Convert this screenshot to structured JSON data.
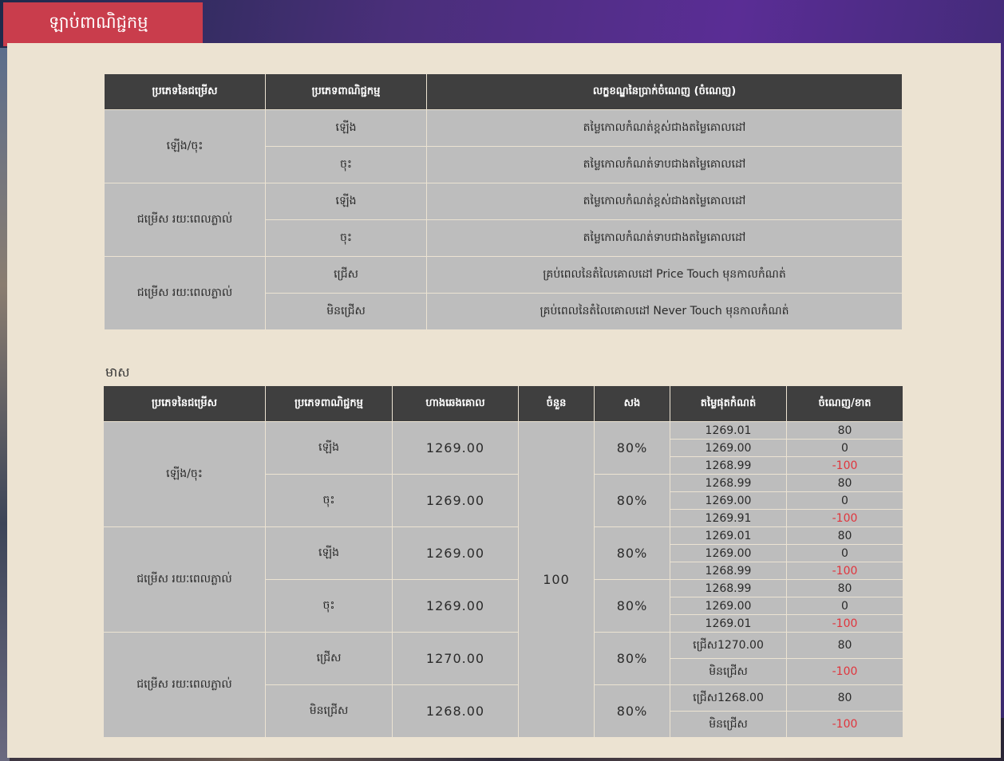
{
  "tab": {
    "title": "ឡាប់ពាណិជ្ជកម្ម"
  },
  "table1": {
    "headers": [
      "ប្រភេទនៃជម្រើស",
      "ប្រភេទពាណិជ្ជកម្ម",
      "លក្ខខណ្ឌនៃប្រាក់ចំណេញ (ចំណេញ)"
    ],
    "rows": [
      {
        "option": "ឡើង/ចុះ",
        "trade": "ឡើង",
        "condition": "តម្លៃកោលកំណត់ខ្ពស់ជាងតម្លៃគោលដៅ"
      },
      {
        "trade": "ចុះ",
        "condition": "តម្លៃកោលកំណត់ទាបជាងតម្លៃគោលដៅ"
      },
      {
        "option": "ជម្រើស រយៈពេលភ្លាល់",
        "trade": "ឡើង",
        "condition": "តម្លៃកោលកំណត់ខ្ពស់ជាងតម្លៃគោលដៅ"
      },
      {
        "trade": "ចុះ",
        "condition": "តម្លៃកោលកំណត់ទាបជាងតម្លៃគោលដៅ"
      },
      {
        "option": "ជម្រើស រយៈពេលភ្លាល់",
        "trade": "ជ្រើស",
        "condition": "គ្រប់ពេលនៃតំលៃគោលដៅ Price Touch មុនកាលកំណត់"
      },
      {
        "trade": "មិនជ្រើស",
        "condition": "គ្រប់ពេលនៃតំលៃគោលដៅ Never Touch មុនកាលកំណត់"
      }
    ]
  },
  "section_label": "មាស",
  "table2": {
    "headers": [
      "ប្រភេទនៃជម្រើស",
      "ប្រភេទពាណិជ្ជកម្ម",
      "ហាងឆេងគោល",
      "ចំនួន",
      "សង",
      "តម្លៃផុតកំណត់",
      "ចំណេញ/ខាត"
    ],
    "amount": "100",
    "groups": [
      {
        "option": "ឡើង/ចុះ",
        "trade": "ឡើង",
        "base": "1269.00",
        "payout": "80%",
        "expiry": [
          "1269.01",
          "1269.00",
          "1268.99"
        ],
        "pl": [
          "80",
          "0",
          "-100"
        ]
      },
      {
        "trade": "ចុះ",
        "base": "1269.00",
        "payout": "80%",
        "expiry": [
          "1268.99",
          "1269.00",
          "1269.91"
        ],
        "pl": [
          "80",
          "0",
          "-100"
        ]
      },
      {
        "option": "ជម្រើស រយៈពេលភ្លាល់",
        "trade": "ឡើង",
        "base": "1269.00",
        "payout": "80%",
        "expiry": [
          "1269.01",
          "1269.00",
          "1268.99"
        ],
        "pl": [
          "80",
          "0",
          "-100"
        ]
      },
      {
        "trade": "ចុះ",
        "base": "1269.00",
        "payout": "80%",
        "expiry": [
          "1268.99",
          "1269.00",
          "1269.01"
        ],
        "pl": [
          "80",
          "0",
          "-100"
        ]
      },
      {
        "option": "ជម្រើស រយៈពេលភ្លាល់",
        "trade": "ជ្រើស",
        "base": "1270.00",
        "payout": "80%",
        "expiry": [
          "ជ្រើស1270.00",
          "មិនជ្រើស"
        ],
        "pl": [
          "80",
          "-100"
        ]
      },
      {
        "trade": "មិនជ្រើស",
        "base": "1268.00",
        "payout": "80%",
        "expiry": [
          "ជ្រើស1268.00",
          "មិនជ្រើស"
        ],
        "pl": [
          "80",
          "-100"
        ]
      }
    ]
  },
  "colors": {
    "tab": "#c93d4c",
    "header": "#3f3f3f",
    "cell": "#bdbdbd",
    "panel": "#ece3d2",
    "negative": "#e0353d"
  }
}
